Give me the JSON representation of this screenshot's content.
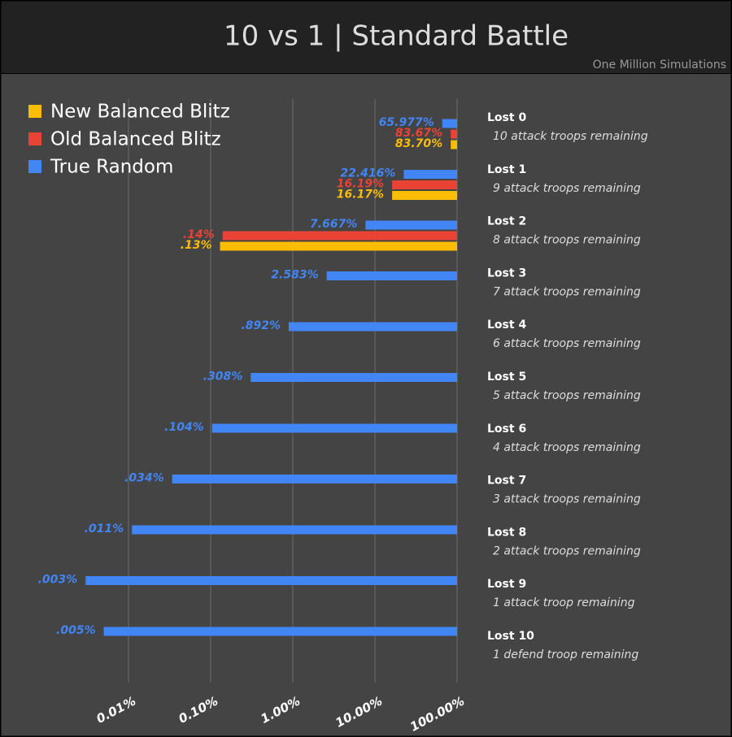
{
  "chart_data": {
    "type": "bar",
    "orientation": "horizontal",
    "title": "10 vs 1 | Standard Battle",
    "subtitle": "One Million Simulations",
    "categories": [
      "Lost 0",
      "Lost 1",
      "Lost 2",
      "Lost 3",
      "Lost 4",
      "Lost 5",
      "Lost 6",
      "Lost 7",
      "Lost 8",
      "Lost 9",
      "Lost 10"
    ],
    "category_notes": [
      "10 attack troops remaining",
      "9 attack troops remaining",
      "8 attack troops remaining",
      "7 attack troops remaining",
      "6 attack troops remaining",
      "5 attack troops remaining",
      "4 attack troops remaining",
      "3 attack troops remaining",
      "2 attack troops remaining",
      "1 attack troop remaining",
      "1 defend troop remaining"
    ],
    "series": [
      {
        "name": "New Balanced Blitz",
        "color": "#fbbc04",
        "values": [
          83.7,
          16.17,
          0.13,
          null,
          null,
          null,
          null,
          null,
          null,
          null,
          null
        ],
        "value_labels": [
          "83.70%",
          "16.17%",
          ".13%",
          null,
          null,
          null,
          null,
          null,
          null,
          null,
          null
        ]
      },
      {
        "name": "Old Balanced Blitz",
        "color": "#ea4335",
        "values": [
          83.67,
          16.19,
          0.14,
          null,
          null,
          null,
          null,
          null,
          null,
          null,
          null
        ],
        "value_labels": [
          "83.67%",
          "16.19%",
          ".14%",
          null,
          null,
          null,
          null,
          null,
          null,
          null,
          null
        ]
      },
      {
        "name": "True Random",
        "color": "#4285f4",
        "values": [
          65.977,
          22.416,
          7.667,
          2.583,
          0.892,
          0.308,
          0.104,
          0.034,
          0.011,
          0.003,
          0.005
        ],
        "value_labels": [
          "65.977%",
          "22.416%",
          "7.667%",
          "2.583%",
          ".892%",
          ".308%",
          ".104%",
          ".034%",
          ".011%",
          ".003%",
          ".005%"
        ]
      }
    ],
    "xlim": [
      0.001,
      100
    ],
    "xticks": [
      {
        "value": 0.01,
        "label": "0.01%"
      },
      {
        "value": 0.1,
        "label": "0.10%"
      },
      {
        "value": 1,
        "label": "1.00%"
      },
      {
        "value": 10,
        "label": "10.00%"
      },
      {
        "value": 100,
        "label": "100.00%"
      }
    ],
    "log_x": true,
    "grid": true,
    "legend": "top-left"
  }
}
